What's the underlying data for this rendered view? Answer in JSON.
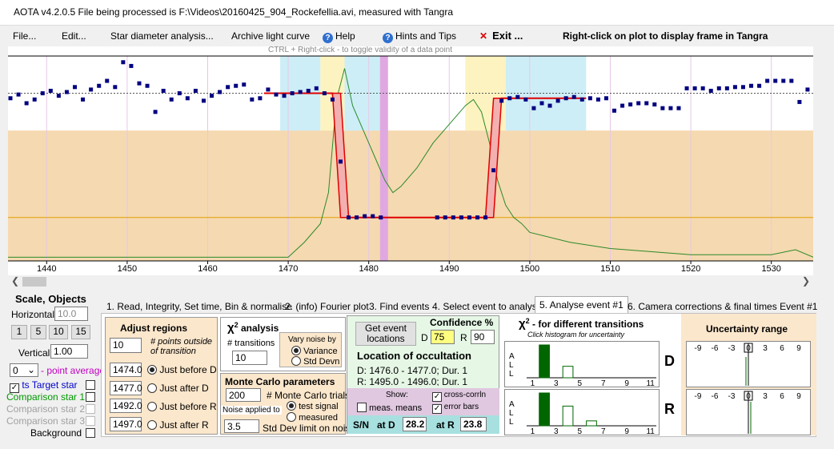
{
  "title": "AOTA v4.2.0.5   File being processed is F:\\Videos\\20160425_904_Rockefellia.avi, measured with Tangra",
  "menu": {
    "file": "File...",
    "edit": "Edit...",
    "star_diameter": "Star diameter analysis...",
    "archive": "Archive light curve",
    "help": "Help",
    "hints": "Hints and Tips",
    "exit": "Exit ...",
    "right_click_hint": "Right-click on plot to display frame in Tangra"
  },
  "plot": {
    "ctrl_hint": "CTRL + Right-click  -  to toggle validity of a data point",
    "x_ticks": [
      "1440",
      "1450",
      "1460",
      "1470",
      "1480",
      "1490",
      "1500",
      "1510",
      "1520",
      "1530"
    ],
    "x_tick_values": [
      1440,
      1450,
      1460,
      1470,
      1480,
      1490,
      1500,
      1510,
      1520,
      1530
    ],
    "x_range": [
      1435.2,
      1535.2
    ],
    "y_range": [
      -0.35,
      1.3
    ],
    "baseline_level": 1.0,
    "event_level": 0.0,
    "d_region": [
      1474,
      1477
    ],
    "r_region": [
      1492,
      1497
    ],
    "d_transition": [
      1476.0,
      1477.0
    ],
    "r_transition": [
      1495.0,
      1496.0
    ],
    "marker_frame": 1481.9,
    "data_points": [
      [
        1435.5,
        0.96
      ],
      [
        1436.5,
        0.99
      ],
      [
        1437.5,
        0.92
      ],
      [
        1438.5,
        0.95
      ],
      [
        1439.5,
        1.0
      ],
      [
        1440.5,
        1.02
      ],
      [
        1441.5,
        0.98
      ],
      [
        1442.5,
        1.01
      ],
      [
        1443.5,
        1.05
      ],
      [
        1444.5,
        0.95
      ],
      [
        1445.5,
        1.03
      ],
      [
        1446.5,
        1.06
      ],
      [
        1447.5,
        1.1
      ],
      [
        1448.5,
        1.05
      ],
      [
        1449.5,
        1.25
      ],
      [
        1450.5,
        1.22
      ],
      [
        1451.5,
        1.08
      ],
      [
        1452.5,
        1.06
      ],
      [
        1453.5,
        0.85
      ],
      [
        1454.5,
        1.02
      ],
      [
        1455.5,
        0.95
      ],
      [
        1456.5,
        1.0
      ],
      [
        1457.5,
        0.96
      ],
      [
        1458.5,
        1.02
      ],
      [
        1459.5,
        0.94
      ],
      [
        1460.5,
        0.98
      ],
      [
        1461.5,
        1.01
      ],
      [
        1462.5,
        1.05
      ],
      [
        1463.5,
        1.06
      ],
      [
        1464.5,
        1.07
      ],
      [
        1465.5,
        0.95
      ],
      [
        1466.5,
        0.96
      ],
      [
        1467.5,
        1.03
      ],
      [
        1468.5,
        0.99
      ],
      [
        1469.5,
        0.98
      ],
      [
        1470.5,
        1.0
      ],
      [
        1471.5,
        1.01
      ],
      [
        1472.5,
        1.02
      ],
      [
        1473.5,
        1.04
      ],
      [
        1474.5,
        1.0
      ],
      [
        1475.5,
        0.95
      ],
      [
        1476.5,
        0.45
      ],
      [
        1477.5,
        0.0
      ],
      [
        1478.5,
        0.0
      ],
      [
        1479.5,
        0.01
      ],
      [
        1480.5,
        0.01
      ],
      [
        1481.5,
        0.0
      ],
      [
        1488.5,
        0.0
      ],
      [
        1489.5,
        0.0
      ],
      [
        1490.5,
        0.0
      ],
      [
        1491.5,
        0.0
      ],
      [
        1492.5,
        0.0
      ],
      [
        1493.5,
        0.0
      ],
      [
        1494.5,
        0.0
      ],
      [
        1495.5,
        0.38
      ],
      [
        1496.5,
        0.94
      ],
      [
        1497.5,
        0.96
      ],
      [
        1498.5,
        0.97
      ],
      [
        1499.5,
        0.95
      ],
      [
        1500.5,
        0.88
      ],
      [
        1501.5,
        0.92
      ],
      [
        1502.5,
        0.9
      ],
      [
        1503.5,
        0.94
      ],
      [
        1504.5,
        0.96
      ],
      [
        1505.5,
        0.97
      ],
      [
        1506.5,
        0.95
      ],
      [
        1507.5,
        0.96
      ],
      [
        1508.5,
        0.95
      ],
      [
        1509.5,
        0.96
      ],
      [
        1510.5,
        0.86
      ],
      [
        1511.5,
        0.9
      ],
      [
        1512.5,
        0.91
      ],
      [
        1513.5,
        0.92
      ],
      [
        1514.5,
        0.92
      ],
      [
        1515.5,
        0.91
      ],
      [
        1516.5,
        0.88
      ],
      [
        1517.5,
        0.88
      ],
      [
        1518.5,
        0.88
      ],
      [
        1519.5,
        1.04
      ],
      [
        1520.5,
        1.04
      ],
      [
        1521.5,
        1.04
      ],
      [
        1522.5,
        1.02
      ],
      [
        1523.5,
        1.04
      ],
      [
        1524.5,
        1.04
      ],
      [
        1525.5,
        1.05
      ],
      [
        1526.5,
        1.05
      ],
      [
        1527.5,
        1.06
      ],
      [
        1528.5,
        1.06
      ],
      [
        1529.5,
        1.1
      ],
      [
        1530.5,
        1.1
      ],
      [
        1531.5,
        1.1
      ],
      [
        1532.5,
        1.1
      ],
      [
        1533.5,
        0.93
      ],
      [
        1534.5,
        1.03
      ]
    ],
    "green_curve": [
      [
        1435.2,
        -0.32
      ],
      [
        1470,
        -0.32
      ],
      [
        1472,
        -0.2
      ],
      [
        1474,
        -0.05
      ],
      [
        1475,
        0.2
      ],
      [
        1476,
        0.95
      ],
      [
        1477,
        1.2
      ],
      [
        1478,
        0.9
      ],
      [
        1479,
        0.75
      ],
      [
        1480,
        0.6
      ],
      [
        1481,
        0.45
      ],
      [
        1482,
        0.3
      ],
      [
        1483,
        0.2
      ],
      [
        1484,
        0.25
      ],
      [
        1486,
        0.4
      ],
      [
        1488,
        0.6
      ],
      [
        1490,
        0.75
      ],
      [
        1492,
        0.9
      ],
      [
        1493,
        0.95
      ],
      [
        1494,
        0.85
      ],
      [
        1495,
        0.6
      ],
      [
        1496,
        0.3
      ],
      [
        1497,
        0.1
      ],
      [
        1498,
        0.0
      ],
      [
        1499,
        -0.05
      ],
      [
        1500,
        -0.12
      ],
      [
        1505,
        -0.2
      ],
      [
        1510,
        -0.25
      ],
      [
        1520,
        -0.3
      ],
      [
        1530,
        -0.3
      ],
      [
        1533,
        -0.26
      ],
      [
        1535.2,
        -0.32
      ]
    ]
  },
  "scale": {
    "title": "Scale,  Objects",
    "horizontal_label": "Horizontal",
    "horizontal_value": "10.0",
    "buttons": [
      "1",
      "5",
      "10",
      "15"
    ],
    "vertical_label": "Vertical",
    "vertical_value": "1.00",
    "point_avg_value": "0",
    "point_avg_label": "- point average",
    "target_label": "ts  Target star",
    "comp1_label": "Comparison star 1",
    "comp2_label": "Comparison star 2",
    "comp3_label": "Comparison star 3",
    "background_label": "Background",
    "colors": {
      "target": "#0000cc",
      "comp1": "#009900",
      "disabled": "#a0a0a0"
    }
  },
  "tabs": [
    "1.  Read, Integrity, Set time, Bin & normalise",
    "2. (info)  Fourier plot",
    "3. Find events",
    "4. Select event to analyse",
    "5.  Analyse event #1",
    "6. Camera corrections & final times Event #1"
  ],
  "adjust": {
    "title": "Adjust regions",
    "points_value": "10",
    "points_label": "# points outside of transition",
    "rows": [
      {
        "value": "1474.0",
        "label": "Just before D",
        "selected": true
      },
      {
        "value": "1477.0",
        "label": "Just after D",
        "selected": false
      },
      {
        "value": "1492.0",
        "label": "Just before R",
        "selected": false
      },
      {
        "value": "1497.0",
        "label": "Just after R",
        "selected": false
      }
    ]
  },
  "chi2": {
    "title_sym": "χ",
    "title_sup": "2",
    "title_rest": " analysis",
    "transitions_label": "# transitions",
    "transitions_value": "10",
    "noise_title": "Vary noise by",
    "variance": "Variance",
    "std_devn": "Std Devn"
  },
  "monte": {
    "title": "Monte Carlo parameters",
    "trials_value": "200",
    "trials_label": "# Monte Carlo trials",
    "noise_applied": "Noise applied to",
    "test_signal": "test signal",
    "measured": "measured",
    "std_value": "3.5",
    "std_label": "Std Dev limit on noise"
  },
  "event": {
    "get_locations": "Get event locations",
    "confidence": "Confidence %",
    "d_label": "D",
    "d_value": "75",
    "r_label": "R",
    "r_value": "90",
    "location_title": "Location of occultation",
    "d_line": "D: 1476.0 - 1477.0; Dur. 1",
    "r_line": "R: 1495.0 - 1496.0; Dur. 1",
    "show_label": "Show:",
    "meas_means": "meas. means",
    "cross_corrln": "cross-corrln",
    "error_bars": "error bars",
    "sn_label": "S/N",
    "at_d_label": "at D",
    "at_d_value": "28.2",
    "at_r_label": "at R",
    "at_r_value": "23.8"
  },
  "histo": {
    "title_sym": "χ",
    "title_sup": "2",
    "title_rest": " - for different transitions",
    "subtitle": "Click histogram for uncertainty",
    "ticks": [
      "1",
      "3",
      "5",
      "7",
      "9",
      "11"
    ],
    "d_letter": "D",
    "r_letter": "R",
    "d_values": [
      0,
      1.0,
      0,
      0.35,
      0,
      0,
      0,
      0,
      0,
      0,
      0
    ],
    "r_values": [
      0,
      1.0,
      0,
      0.6,
      0,
      0.15,
      0,
      0,
      0,
      0,
      0
    ],
    "side_letters": [
      "A",
      "L",
      "L"
    ]
  },
  "uncertainty": {
    "title": "Uncertainty range",
    "ticks": [
      "-9",
      "-6",
      "-3",
      "0",
      "3",
      "6",
      "9"
    ]
  }
}
